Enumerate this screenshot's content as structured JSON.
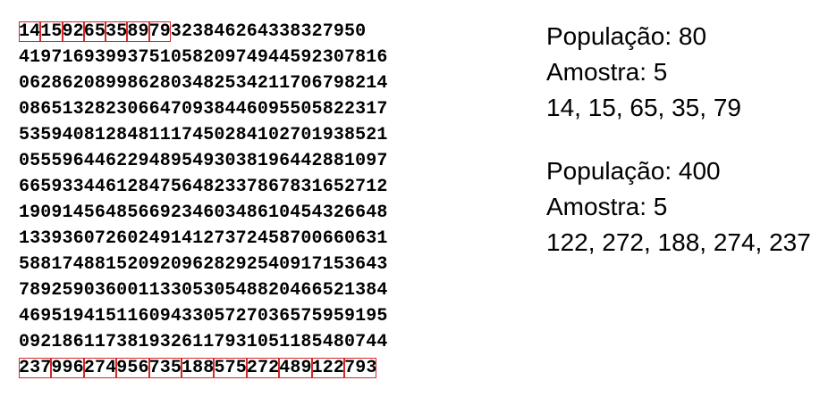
{
  "table": {
    "rows": [
      {
        "groups": [
          {
            "t": "14",
            "box": true
          },
          {
            "t": "15",
            "box": true
          },
          {
            "t": "92",
            "box": true
          },
          {
            "t": "65",
            "box": true
          },
          {
            "t": "35",
            "box": true
          },
          {
            "t": "89",
            "box": true
          },
          {
            "t": "79",
            "box": true
          },
          {
            "t": "323846264338327950",
            "box": false
          }
        ]
      },
      {
        "groups": [
          {
            "t": "4197169399375105820974944592307816",
            "box": false
          }
        ]
      },
      {
        "groups": [
          {
            "t": "0628620899862803482534211706798214",
            "box": false
          }
        ]
      },
      {
        "groups": [
          {
            "t": "0865132823066470938446095505822317",
            "box": false
          }
        ]
      },
      {
        "groups": [
          {
            "t": "5359408128481117450284102701938521",
            "box": false
          }
        ]
      },
      {
        "groups": [
          {
            "t": "0555964462294895493038196442881097",
            "box": false
          }
        ]
      },
      {
        "groups": [
          {
            "t": "6659334461284756482337867831652712",
            "box": false
          }
        ]
      },
      {
        "groups": [
          {
            "t": "1909145648566923460348610454326648",
            "box": false
          }
        ]
      },
      {
        "groups": [
          {
            "t": "1339360726024914127372458700660631",
            "box": false
          }
        ]
      },
      {
        "groups": [
          {
            "t": "5881748815209209628292540917153643",
            "box": false
          }
        ]
      },
      {
        "groups": [
          {
            "t": "7892590360011330530548820466521384",
            "box": false
          }
        ]
      },
      {
        "groups": [
          {
            "t": "4695194151160943305727036575959195",
            "box": false
          }
        ]
      },
      {
        "groups": [
          {
            "t": "0921861173819326117931051185480744",
            "box": false
          }
        ]
      },
      {
        "groups": [
          {
            "t": "237",
            "box": true
          },
          {
            "t": "996",
            "box": true
          },
          {
            "t": "274",
            "box": true
          },
          {
            "t": "956",
            "box": true
          },
          {
            "t": "735",
            "box": true
          },
          {
            "t": "188",
            "box": true
          },
          {
            "t": "575",
            "box": true
          },
          {
            "t": "272",
            "box": true
          },
          {
            "t": "489",
            "box": true
          },
          {
            "t": "122",
            "box": true
          },
          {
            "t": "793",
            "box": true
          }
        ]
      }
    ],
    "highlight_color": "#d62828"
  },
  "sample1": {
    "population": "População: 80",
    "sample": "Amostra: 5",
    "values": "14, 15, 65, 35, 79"
  },
  "sample2": {
    "population": "População: 400",
    "sample": "Amostra: 5",
    "values": "122, 272, 188, 274, 237"
  }
}
